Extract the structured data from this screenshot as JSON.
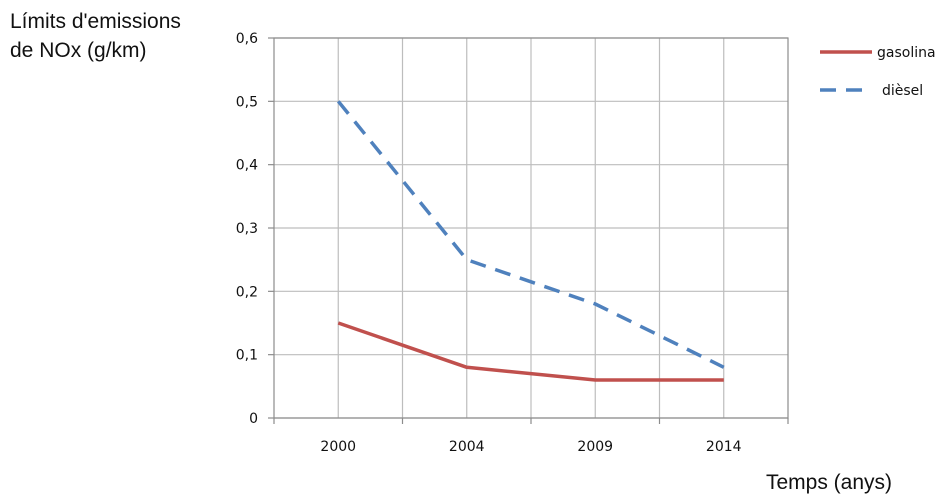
{
  "chart_data": {
    "type": "line",
    "ylabel_lines": [
      "Límits d'emissions",
      "de NOx (g/km)"
    ],
    "xlabel": "Temps (anys)",
    "categories": [
      "2000",
      "2004",
      "2009",
      "2014"
    ],
    "ylim": [
      0,
      0.6
    ],
    "yticks": [
      0,
      0.1,
      0.2,
      0.3,
      0.4,
      0.5,
      0.6
    ],
    "ytick_labels": [
      "0",
      "0,1",
      "0,2",
      "0,3",
      "0,4",
      "0,5",
      "0,6"
    ],
    "grid": true,
    "legend_position": "right",
    "series": [
      {
        "name": "gasolina",
        "values": [
          0.15,
          0.08,
          0.06,
          0.06
        ],
        "color": "#c0504d",
        "style": "solid"
      },
      {
        "name": "dièsel",
        "values": [
          0.5,
          0.25,
          0.18,
          0.08
        ],
        "color": "#4f81bd",
        "style": "dashed"
      }
    ]
  }
}
